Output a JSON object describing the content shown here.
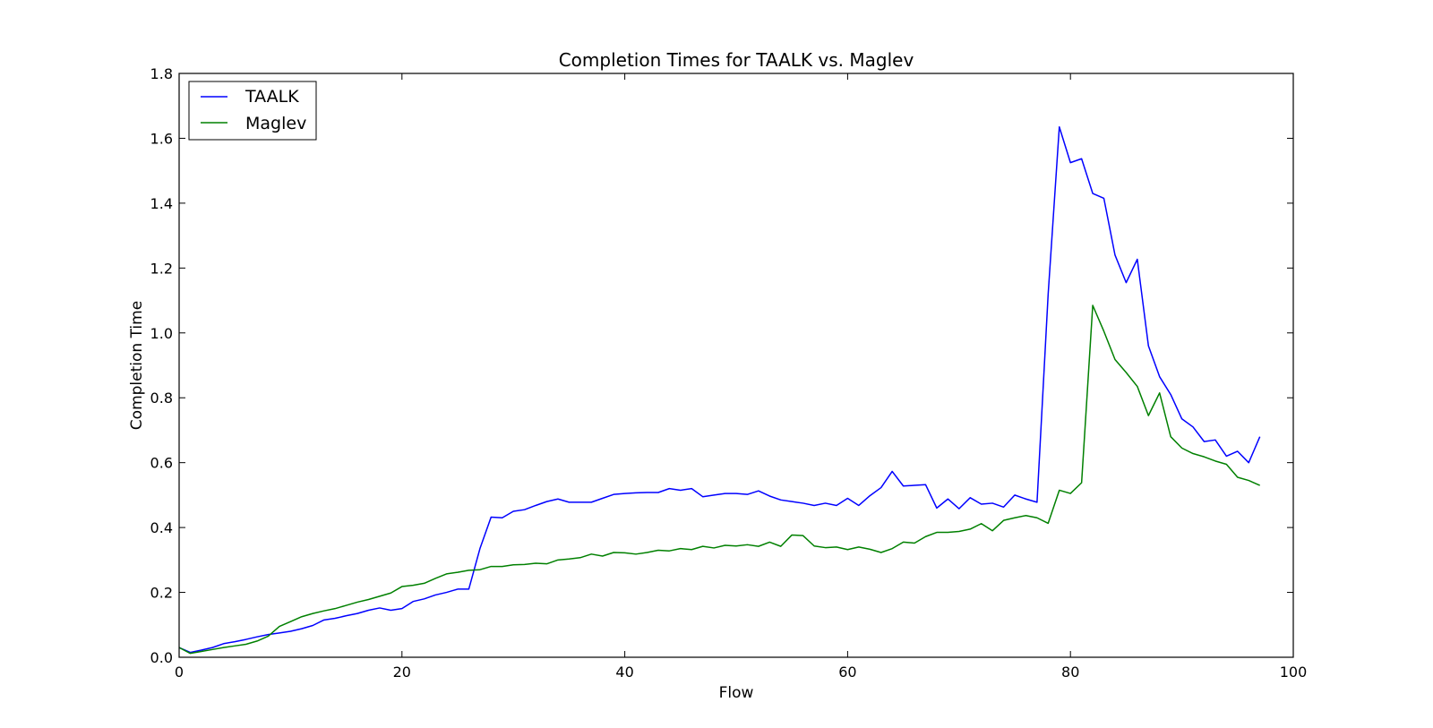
{
  "chart_data": {
    "type": "line",
    "title": "Completion Times for TAALK vs. Maglev",
    "xlabel": "Flow",
    "ylabel": "Completion Time",
    "xlim": [
      0,
      100
    ],
    "ylim": [
      0,
      1.8
    ],
    "xticks": [
      "0",
      "20",
      "40",
      "60",
      "80",
      "100"
    ],
    "yticks": [
      "0.0",
      "0.2",
      "0.4",
      "0.6",
      "0.8",
      "1.0",
      "1.2",
      "1.4",
      "1.6",
      "1.8"
    ],
    "grid": false,
    "legend_position": "upper-left",
    "x": [
      0,
      1,
      2,
      3,
      4,
      5,
      6,
      7,
      8,
      9,
      10,
      11,
      12,
      13,
      14,
      15,
      16,
      17,
      18,
      19,
      20,
      21,
      22,
      23,
      24,
      25,
      26,
      27,
      28,
      29,
      30,
      31,
      32,
      33,
      34,
      35,
      36,
      37,
      38,
      39,
      40,
      41,
      42,
      43,
      44,
      45,
      46,
      47,
      48,
      49,
      50,
      51,
      52,
      53,
      54,
      55,
      56,
      57,
      58,
      59,
      60,
      61,
      62,
      63,
      64,
      65,
      66,
      67,
      68,
      69,
      70,
      71,
      72,
      73,
      74,
      75,
      76,
      77,
      78,
      79,
      80,
      81,
      82,
      83,
      84,
      85,
      86,
      87,
      88,
      89,
      90,
      91,
      92,
      93,
      94,
      95,
      96,
      97
    ],
    "series": [
      {
        "name": "TAALK",
        "color": "#0000ff",
        "values": [
          0.03,
          0.015,
          0.022,
          0.03,
          0.042,
          0.048,
          0.055,
          0.063,
          0.07,
          0.075,
          0.08,
          0.088,
          0.098,
          0.115,
          0.12,
          0.128,
          0.135,
          0.145,
          0.152,
          0.145,
          0.15,
          0.172,
          0.18,
          0.192,
          0.2,
          0.21,
          0.21,
          0.335,
          0.432,
          0.43,
          0.45,
          0.455,
          0.468,
          0.48,
          0.488,
          0.478,
          0.478,
          0.478,
          0.49,
          0.502,
          0.505,
          0.507,
          0.508,
          0.508,
          0.52,
          0.515,
          0.52,
          0.495,
          0.5,
          0.505,
          0.505,
          0.502,
          0.513,
          0.497,
          0.485,
          0.48,
          0.475,
          0.468,
          0.475,
          0.468,
          0.49,
          0.468,
          0.498,
          0.523,
          0.573,
          0.528,
          0.53,
          0.532,
          0.46,
          0.488,
          0.458,
          0.492,
          0.472,
          0.475,
          0.463,
          0.5,
          0.488,
          0.478,
          1.12,
          1.635,
          1.525,
          1.537,
          1.43,
          1.415,
          1.24,
          1.155,
          1.227,
          0.96,
          0.865,
          0.81,
          0.735,
          0.71,
          0.665,
          0.67,
          0.62,
          0.635,
          0.6,
          0.68
        ]
      },
      {
        "name": "Maglev",
        "color": "#008000",
        "values": [
          0.03,
          0.012,
          0.018,
          0.024,
          0.03,
          0.035,
          0.04,
          0.05,
          0.065,
          0.095,
          0.11,
          0.125,
          0.135,
          0.143,
          0.15,
          0.16,
          0.17,
          0.178,
          0.188,
          0.198,
          0.218,
          0.222,
          0.228,
          0.243,
          0.257,
          0.262,
          0.268,
          0.27,
          0.28,
          0.28,
          0.285,
          0.286,
          0.29,
          0.288,
          0.3,
          0.303,
          0.307,
          0.318,
          0.312,
          0.323,
          0.322,
          0.318,
          0.323,
          0.33,
          0.328,
          0.335,
          0.332,
          0.342,
          0.337,
          0.345,
          0.343,
          0.347,
          0.342,
          0.355,
          0.342,
          0.377,
          0.375,
          0.343,
          0.338,
          0.34,
          0.332,
          0.34,
          0.333,
          0.323,
          0.335,
          0.355,
          0.352,
          0.372,
          0.385,
          0.385,
          0.388,
          0.395,
          0.412,
          0.39,
          0.422,
          0.43,
          0.437,
          0.43,
          0.413,
          0.515,
          0.505,
          0.538,
          1.085,
          1.005,
          0.918,
          0.878,
          0.835,
          0.745,
          0.815,
          0.68,
          0.645,
          0.628,
          0.618,
          0.605,
          0.595,
          0.555,
          0.545,
          0.53
        ]
      }
    ]
  }
}
